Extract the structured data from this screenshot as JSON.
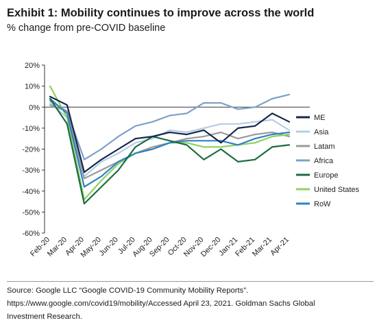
{
  "title": "Exhibit 1: Mobility continues to improve across the world",
  "subtitle": "% change from pre-COVID baseline",
  "source": {
    "line1": "Source: Google LLC “Google COVID-19 Community Mobility Reports”.",
    "line2": "https://www.google.com/covid19/mobility/Accessed April 23, 2021. Goldman Sachs Global",
    "line3": "Investment Research."
  },
  "chart_data": {
    "type": "line",
    "xlabel": "",
    "ylabel": "",
    "x": [
      "Feb-20",
      "Mar-20",
      "Apr-20",
      "May-20",
      "Jun-20",
      "Jul-20",
      "Aug-20",
      "Sep-20",
      "Oct-20",
      "Nov-20",
      "Dec-20",
      "Jan-21",
      "Feb-21",
      "Mar-21",
      "Apr-21"
    ],
    "ylim": [
      -60,
      20
    ],
    "yticks": [
      "20%",
      "10%",
      "0%",
      "-10%",
      "-20%",
      "-30%",
      "-40%",
      "-50%",
      "-60%"
    ],
    "grid": false,
    "legend": "right",
    "series": [
      {
        "name": "ME",
        "color": "#13284a",
        "values": [
          5,
          1,
          -31,
          -25,
          -20,
          -15,
          -14,
          -12,
          -13,
          -11,
          -17,
          -10,
          -9,
          -3,
          -7
        ]
      },
      {
        "name": "Asia",
        "color": "#b4cde6",
        "values": [
          2,
          -5,
          -33,
          -26,
          -22,
          -17,
          -15,
          -11,
          -12,
          -10,
          -8,
          -8,
          -7,
          -6,
          -11
        ]
      },
      {
        "name": "Latam",
        "color": "#9a9a9a",
        "values": [
          1,
          -2,
          -34,
          -30,
          -26,
          -22,
          -19,
          -17,
          -15,
          -14,
          -12,
          -15,
          -13,
          -12,
          -14
        ]
      },
      {
        "name": "Africa",
        "color": "#7da0c8",
        "values": [
          3,
          -2,
          -25,
          -20,
          -14,
          -9,
          -7,
          -4,
          -3,
          2,
          2,
          -1,
          0,
          4,
          6
        ]
      },
      {
        "name": "Europe",
        "color": "#1a6b3f",
        "values": [
          4,
          -8,
          -46,
          -38,
          -30,
          -19,
          -14,
          -16,
          -18,
          -25,
          -20,
          -26,
          -25,
          -19,
          -18
        ]
      },
      {
        "name": "United States",
        "color": "#8fd061",
        "values": [
          10,
          -5,
          -44,
          -35,
          -27,
          -22,
          -20,
          -17,
          -17,
          -19,
          -19,
          -18,
          -17,
          -14,
          -13
        ]
      },
      {
        "name": "RoW",
        "color": "#2e80c7",
        "values": [
          4,
          -3,
          -38,
          -33,
          -26,
          -22,
          -20,
          -17,
          -16,
          -16,
          -16,
          -18,
          -15,
          -13,
          -12
        ]
      }
    ]
  }
}
